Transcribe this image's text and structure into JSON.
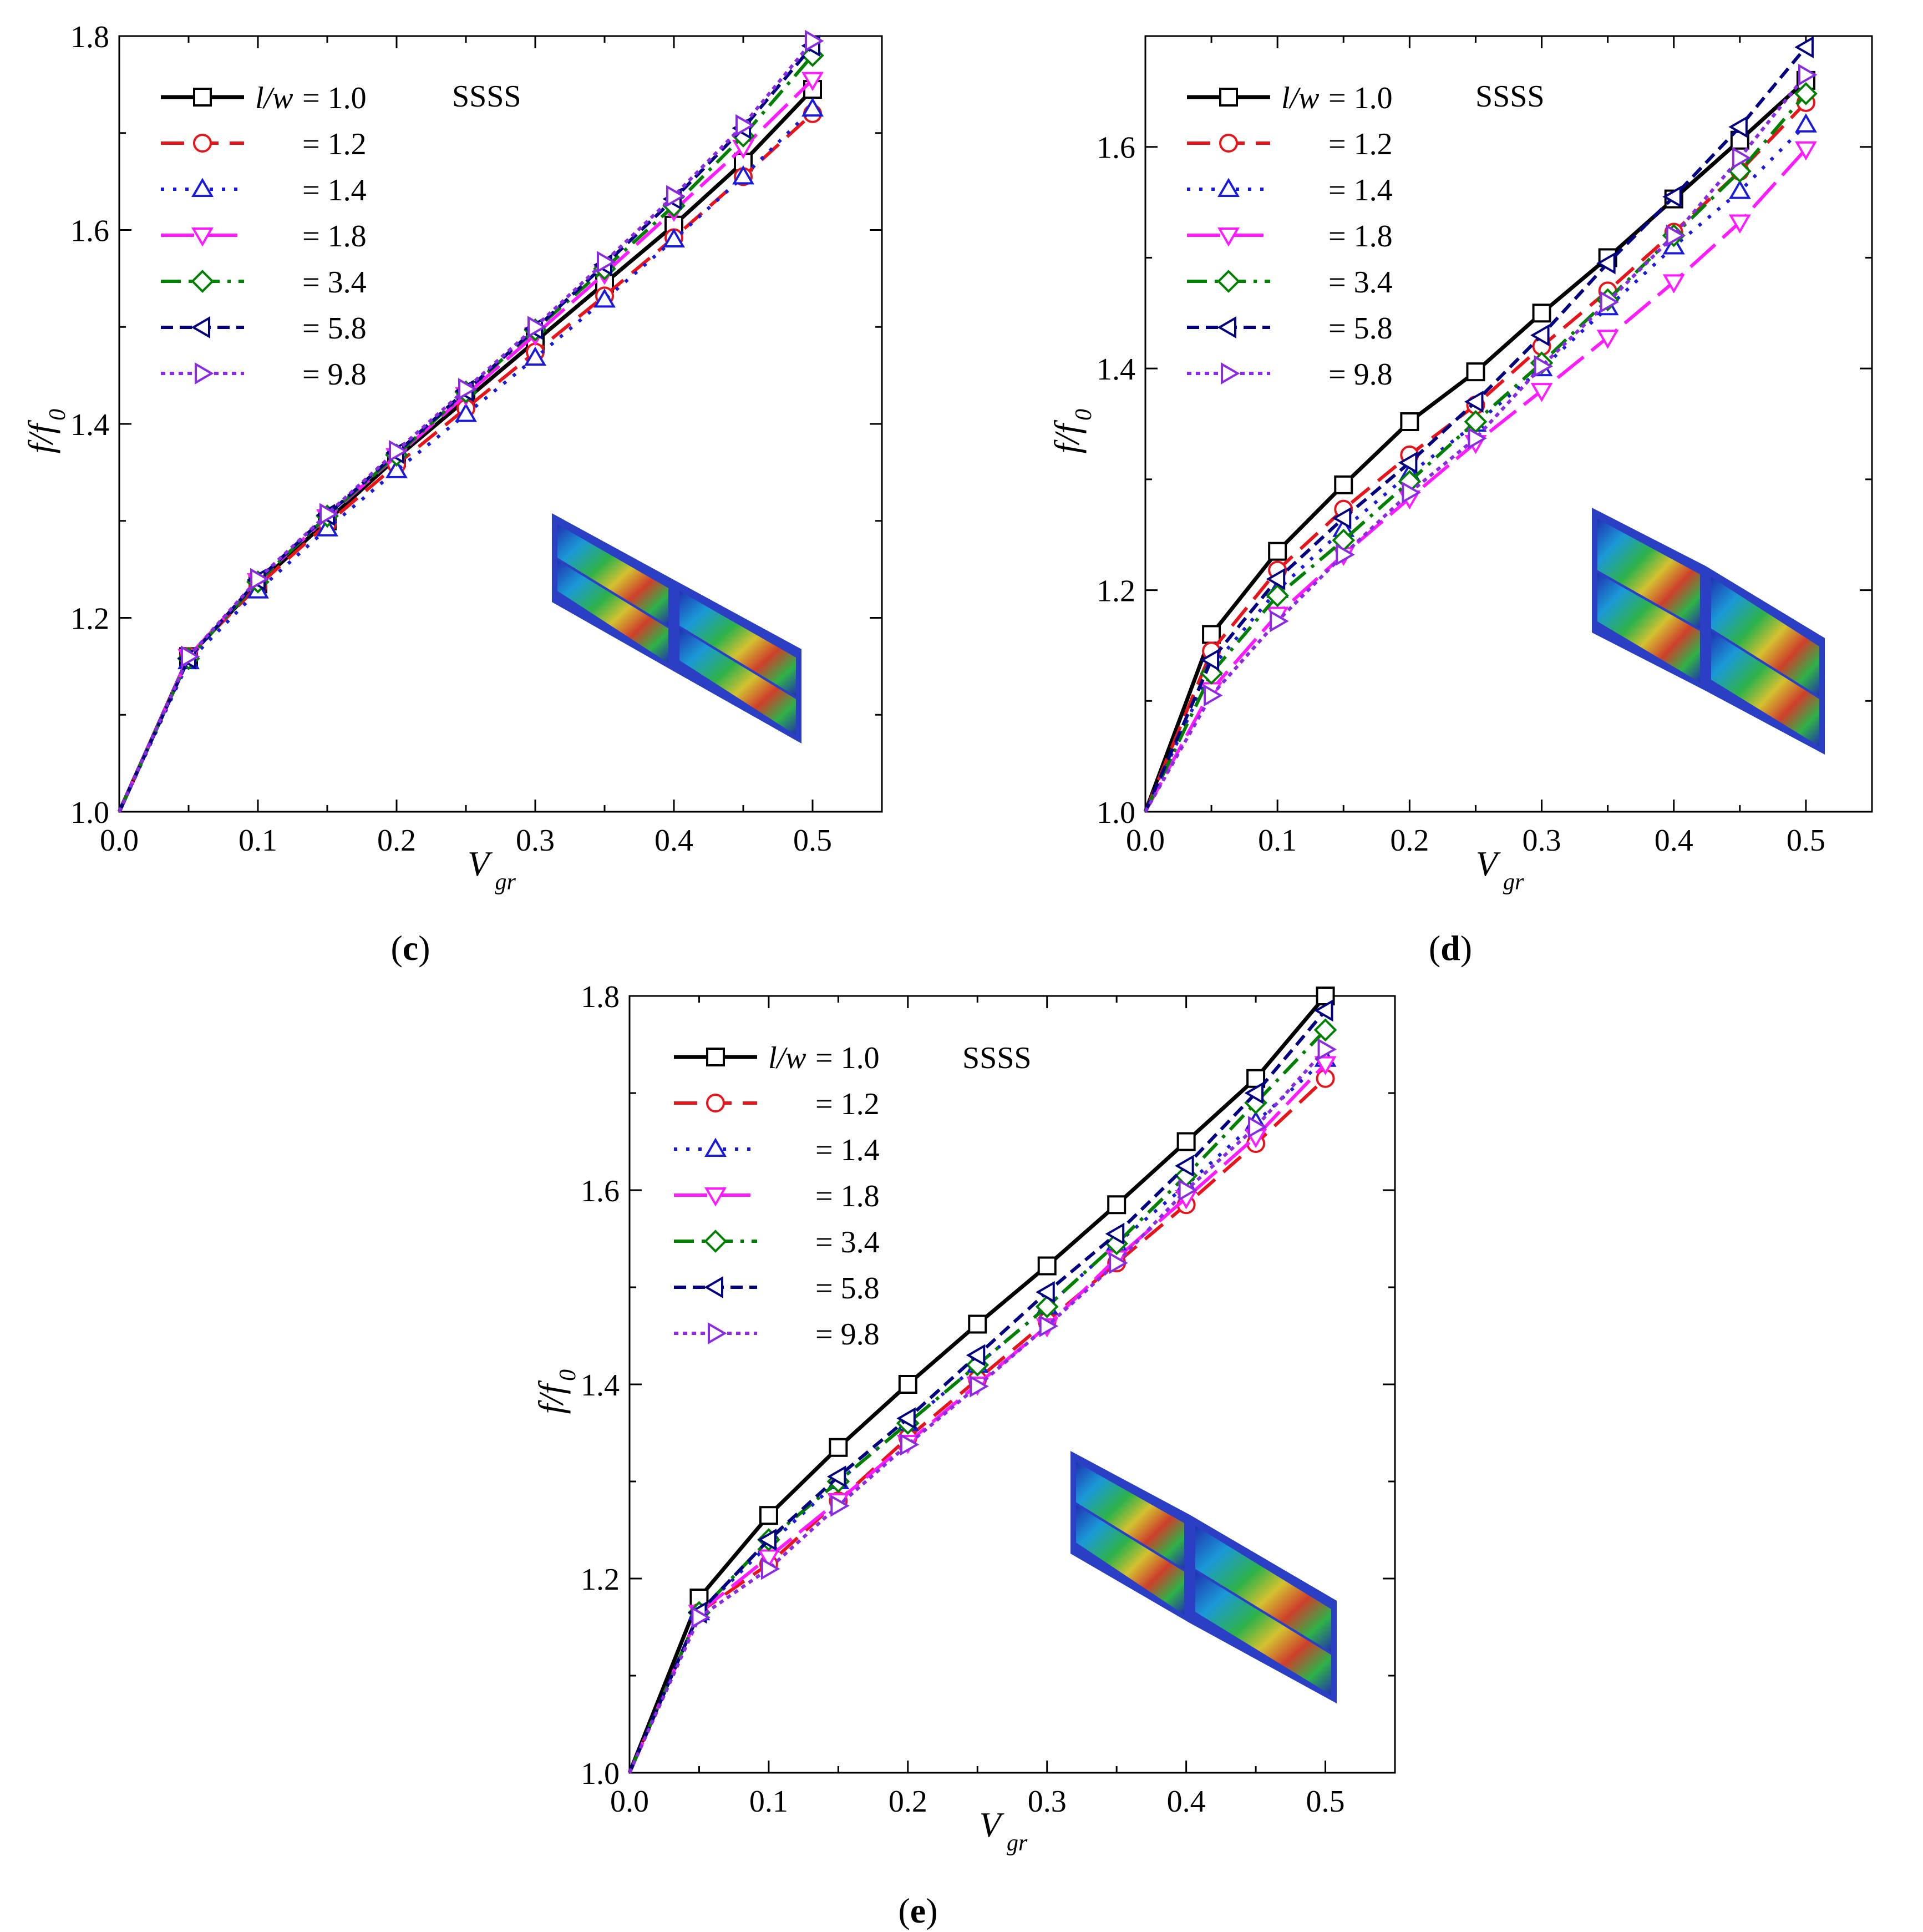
{
  "figure": {
    "series_styles": [
      {
        "color": "#000000",
        "marker": "square",
        "dash": "solid"
      },
      {
        "color": "#e8141b",
        "marker": "circle",
        "dash": "dash"
      },
      {
        "color": "#1a1adb",
        "marker": "triangle-up",
        "dash": "dot"
      },
      {
        "color": "#ff1aff",
        "marker": "triangle-down",
        "dash": "dashlong"
      },
      {
        "color": "#008000",
        "marker": "diamond",
        "dash": "dashdot"
      },
      {
        "color": "#000080",
        "marker": "triangle-left",
        "dash": "shortdash"
      },
      {
        "color": "#8a2be2",
        "marker": "triangle-right",
        "dash": "dotdense"
      }
    ],
    "legend_labels": [
      "l/w",
      "= 1.0",
      "= 1.2",
      "= 1.4",
      "= 1.8",
      "= 3.4",
      "= 5.8",
      "= 9.8"
    ]
  },
  "chart_data": [
    {
      "id": "c",
      "type": "line",
      "panel_label": "c",
      "annotation": "SSSS",
      "xlabel": "V",
      "xlabel_sub": "gr",
      "ylabel": "f/f",
      "ylabel_sub": "0",
      "xlim": [
        0.0,
        0.55
      ],
      "ylim": [
        1.0,
        1.8
      ],
      "xticks": [
        "0.0",
        "0.1",
        "0.2",
        "0.3",
        "0.4",
        "0.5"
      ],
      "yticks": [
        "1.0",
        "1.2",
        "1.4",
        "1.6",
        "1.8"
      ],
      "x": [
        0.0,
        0.05,
        0.1,
        0.15,
        0.2,
        0.25,
        0.3,
        0.35,
        0.4,
        0.45,
        0.5
      ],
      "series": [
        {
          "name": "l/w = 1.0",
          "values": [
            1.0,
            1.16,
            1.235,
            1.3,
            1.365,
            1.425,
            1.485,
            1.545,
            1.605,
            1.67,
            1.745
          ]
        },
        {
          "name": "= 1.2",
          "values": [
            1.0,
            1.16,
            1.233,
            1.297,
            1.358,
            1.416,
            1.474,
            1.532,
            1.592,
            1.655,
            1.72
          ]
        },
        {
          "name": "= 1.4",
          "values": [
            1.0,
            1.155,
            1.228,
            1.292,
            1.352,
            1.41,
            1.468,
            1.528,
            1.59,
            1.655,
            1.725
          ]
        },
        {
          "name": "= 1.8",
          "values": [
            1.0,
            1.16,
            1.238,
            1.304,
            1.367,
            1.43,
            1.492,
            1.555,
            1.62,
            1.685,
            1.755
          ]
        },
        {
          "name": "= 3.4",
          "values": [
            1.0,
            1.158,
            1.237,
            1.305,
            1.368,
            1.433,
            1.497,
            1.56,
            1.625,
            1.697,
            1.78
          ]
        },
        {
          "name": "= 5.8",
          "values": [
            1.0,
            1.158,
            1.239,
            1.306,
            1.37,
            1.434,
            1.498,
            1.564,
            1.632,
            1.705,
            1.79
          ]
        },
        {
          "name": "= 9.8",
          "values": [
            1.0,
            1.16,
            1.24,
            1.307,
            1.372,
            1.436,
            1.5,
            1.567,
            1.635,
            1.708,
            1.795
          ]
        }
      ]
    },
    {
      "id": "d",
      "type": "line",
      "panel_label": "d",
      "annotation": "SSSS",
      "xlabel": "V",
      "xlabel_sub": "gr",
      "ylabel": "f/f",
      "ylabel_sub": "0",
      "xlim": [
        0.0,
        0.55
      ],
      "ylim": [
        1.0,
        1.7
      ],
      "xticks": [
        "0.0",
        "0.1",
        "0.2",
        "0.3",
        "0.4",
        "0.5"
      ],
      "yticks": [
        "1.0",
        "1.2",
        "1.4",
        "1.6"
      ],
      "x": [
        0.0,
        0.05,
        0.1,
        0.15,
        0.2,
        0.25,
        0.3,
        0.35,
        0.4,
        0.45,
        0.5
      ],
      "series": [
        {
          "name": "l/w = 1.0",
          "values": [
            1.0,
            1.16,
            1.235,
            1.295,
            1.352,
            1.397,
            1.45,
            1.5,
            1.553,
            1.606,
            1.66
          ]
        },
        {
          "name": "= 1.2",
          "values": [
            1.0,
            1.145,
            1.218,
            1.273,
            1.322,
            1.367,
            1.42,
            1.47,
            1.523,
            1.578,
            1.64
          ]
        },
        {
          "name": "= 1.4",
          "values": [
            1.0,
            1.13,
            1.2,
            1.255,
            1.305,
            1.35,
            1.4,
            1.455,
            1.51,
            1.56,
            1.62
          ]
        },
        {
          "name": "= 1.8",
          "values": [
            1.0,
            1.11,
            1.178,
            1.232,
            1.283,
            1.333,
            1.38,
            1.428,
            1.478,
            1.532,
            1.598
          ]
        },
        {
          "name": "= 3.4",
          "values": [
            1.0,
            1.125,
            1.195,
            1.245,
            1.298,
            1.352,
            1.405,
            1.462,
            1.52,
            1.578,
            1.648
          ]
        },
        {
          "name": "= 5.8",
          "values": [
            1.0,
            1.137,
            1.21,
            1.265,
            1.315,
            1.37,
            1.43,
            1.495,
            1.555,
            1.618,
            1.69
          ]
        },
        {
          "name": "= 9.8",
          "values": [
            1.0,
            1.105,
            1.172,
            1.232,
            1.288,
            1.337,
            1.402,
            1.46,
            1.52,
            1.59,
            1.665
          ]
        }
      ]
    },
    {
      "id": "e",
      "type": "line",
      "panel_label": "e",
      "annotation": "SSSS",
      "xlabel": "V",
      "xlabel_sub": "gr",
      "ylabel": "f/f",
      "ylabel_sub": "0",
      "xlim": [
        0.0,
        0.55
      ],
      "ylim": [
        1.0,
        1.8
      ],
      "xticks": [
        "0.0",
        "0.1",
        "0.2",
        "0.3",
        "0.4",
        "0.5"
      ],
      "yticks": [
        "1.0",
        "1.2",
        "1.4",
        "1.6",
        "1.8"
      ],
      "x": [
        0.0,
        0.05,
        0.1,
        0.15,
        0.2,
        0.25,
        0.3,
        0.35,
        0.4,
        0.45,
        0.5
      ],
      "series": [
        {
          "name": "l/w = 1.0",
          "values": [
            1.0,
            1.18,
            1.265,
            1.335,
            1.4,
            1.462,
            1.522,
            1.585,
            1.65,
            1.715,
            1.8
          ]
        },
        {
          "name": "= 1.2",
          "values": [
            1.0,
            1.165,
            1.215,
            1.28,
            1.345,
            1.405,
            1.465,
            1.525,
            1.585,
            1.648,
            1.715
          ]
        },
        {
          "name": "= 1.4",
          "values": [
            1.0,
            1.165,
            1.235,
            1.3,
            1.36,
            1.42,
            1.48,
            1.545,
            1.605,
            1.67,
            1.735
          ]
        },
        {
          "name": "= 1.8",
          "values": [
            1.0,
            1.165,
            1.222,
            1.28,
            1.34,
            1.4,
            1.46,
            1.53,
            1.592,
            1.655,
            1.73
          ]
        },
        {
          "name": "= 3.4",
          "values": [
            1.0,
            1.165,
            1.24,
            1.3,
            1.36,
            1.42,
            1.48,
            1.545,
            1.615,
            1.69,
            1.765
          ]
        },
        {
          "name": "= 5.8",
          "values": [
            1.0,
            1.165,
            1.24,
            1.305,
            1.365,
            1.43,
            1.495,
            1.555,
            1.625,
            1.7,
            1.785
          ]
        },
        {
          "name": "= 9.8",
          "values": [
            1.0,
            1.16,
            1.21,
            1.275,
            1.338,
            1.398,
            1.46,
            1.525,
            1.6,
            1.665,
            1.745
          ]
        }
      ]
    }
  ]
}
